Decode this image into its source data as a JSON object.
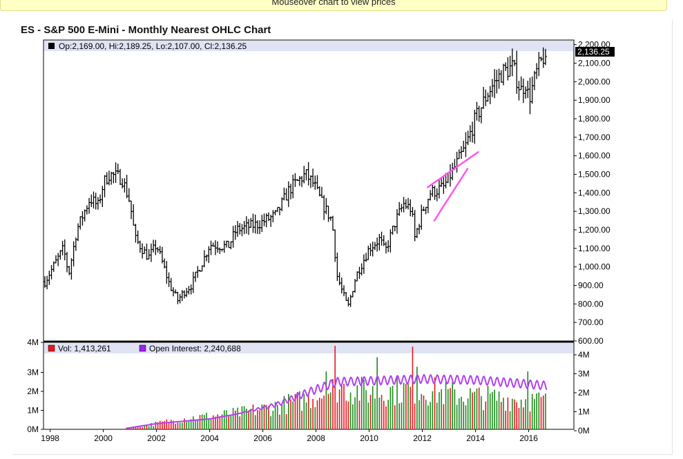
{
  "banner": {
    "text": "Mouseover chart to view prices"
  },
  "chart_data": {
    "type": "ohlc",
    "title": "ES - S&P 500 E-Mini - Monthly Nearest OHLC Chart",
    "x_ticks": [
      "1998",
      "2000",
      "2002",
      "2004",
      "2006",
      "2008",
      "2010",
      "2012",
      "2014",
      "2016"
    ],
    "xlim": [
      1997.75,
      2017.7
    ],
    "price_panel": {
      "ylim": [
        600,
        2225
      ],
      "y_ticks": [
        "600.00",
        "700.00",
        "800.00",
        "900.00",
        "1,000.00",
        "1,100.00",
        "1,200.00",
        "1,300.00",
        "1,400.00",
        "1,500.00",
        "1,600.00",
        "1,700.00",
        "1,800.00",
        "1,900.00",
        "2,000.00",
        "2,100.00",
        "2,200.00"
      ],
      "last_price_label": "2,136.25",
      "legend": {
        "color": "#000000",
        "text": "Op:2,169.00, Hi:2,189.25, Lo:2,107.00, Cl:2,136.25"
      },
      "trendlines": {
        "color": "#ff55ee",
        "lines": [
          [
            [
              2012.2,
              1430
            ],
            [
              2014.1,
              1620
            ]
          ],
          [
            [
              2012.45,
              1250
            ],
            [
              2013.7,
              1530
            ]
          ]
        ]
      },
      "anchors": [
        [
          1997.8,
          920
        ],
        [
          1998.5,
          1100
        ],
        [
          1998.7,
          960
        ],
        [
          1999.0,
          1200
        ],
        [
          1999.5,
          1370
        ],
        [
          1999.8,
          1330
        ],
        [
          2000.0,
          1450
        ],
        [
          2000.2,
          1500
        ],
        [
          2000.7,
          1480
        ],
        [
          2001.0,
          1350
        ],
        [
          2001.2,
          1150
        ],
        [
          2001.7,
          1050
        ],
        [
          2002.0,
          1120
        ],
        [
          2002.5,
          900
        ],
        [
          2002.8,
          820
        ],
        [
          2003.0,
          860
        ],
        [
          2003.3,
          900
        ],
        [
          2003.8,
          1050
        ],
        [
          2004.0,
          1120
        ],
        [
          2004.7,
          1110
        ],
        [
          2005.0,
          1200
        ],
        [
          2005.8,
          1230
        ],
        [
          2006.5,
          1280
        ],
        [
          2007.0,
          1420
        ],
        [
          2007.6,
          1500
        ],
        [
          2007.9,
          1450
        ],
        [
          2008.2,
          1350
        ],
        [
          2008.6,
          1250
        ],
        [
          2008.8,
          950
        ],
        [
          2009.0,
          860
        ],
        [
          2009.2,
          780
        ],
        [
          2009.5,
          950
        ],
        [
          2010.0,
          1100
        ],
        [
          2010.4,
          1150
        ],
        [
          2010.6,
          1080
        ],
        [
          2011.0,
          1250
        ],
        [
          2011.3,
          1340
        ],
        [
          2011.6,
          1310
        ],
        [
          2011.7,
          1150
        ],
        [
          2012.0,
          1300
        ],
        [
          2012.3,
          1400
        ],
        [
          2012.8,
          1430
        ],
        [
          2013.3,
          1560
        ],
        [
          2013.6,
          1640
        ],
        [
          2014.0,
          1800
        ],
        [
          2014.5,
          1950
        ],
        [
          2015.0,
          2050
        ],
        [
          2015.4,
          2080
        ],
        [
          2015.7,
          1950
        ],
        [
          2015.9,
          2000
        ],
        [
          2016.0,
          1900
        ],
        [
          2016.3,
          2050
        ],
        [
          2016.6,
          2150
        ],
        [
          2016.65,
          2136.25
        ]
      ]
    },
    "volume_panel": {
      "ylim": [
        0,
        4000000
      ],
      "left_y_ticks": [
        "0M",
        "1M",
        "2M",
        "3M",
        "4M"
      ],
      "right_y_ticks": [
        "0M",
        "1M",
        "2M",
        "3M",
        "4M"
      ],
      "legend": [
        {
          "color": "#e8141c",
          "label": "Vol: 1,413,261"
        },
        {
          "color": "#a020f0",
          "label": "Open Interest: 2,240,688"
        }
      ],
      "up_color": "#1a8a1a",
      "down_color": "#e8141c",
      "oi_color": "#b040f0",
      "volume_anchors": [
        [
          2000.85,
          0.05
        ],
        [
          2001.5,
          0.2
        ],
        [
          2003.0,
          0.6
        ],
        [
          2005.0,
          0.9
        ],
        [
          2006.5,
          1.3
        ],
        [
          2007.6,
          1.7
        ],
        [
          2008.8,
          2.4
        ],
        [
          2010.0,
          2.1
        ],
        [
          2011.8,
          2.3
        ],
        [
          2013.0,
          2.0
        ],
        [
          2014.5,
          1.8
        ],
        [
          2016.7,
          1.6
        ]
      ],
      "oi_anchors": [
        [
          2000.85,
          0.05
        ],
        [
          2002.0,
          0.3
        ],
        [
          2004.0,
          0.55
        ],
        [
          2005.0,
          0.8
        ],
        [
          2006.5,
          1.3
        ],
        [
          2007.6,
          1.9
        ],
        [
          2008.8,
          2.5
        ],
        [
          2010.0,
          2.55
        ],
        [
          2012.0,
          2.65
        ],
        [
          2014.0,
          2.6
        ],
        [
          2016.7,
          2.3
        ]
      ],
      "spikes": [
        [
          2008.7,
          4.4
        ],
        [
          2010.3,
          3.8
        ],
        [
          2011.6,
          4.35
        ],
        [
          2008.4,
          3.05
        ],
        [
          2011.8,
          3.3
        ],
        [
          2016.0,
          3.05
        ]
      ]
    }
  }
}
